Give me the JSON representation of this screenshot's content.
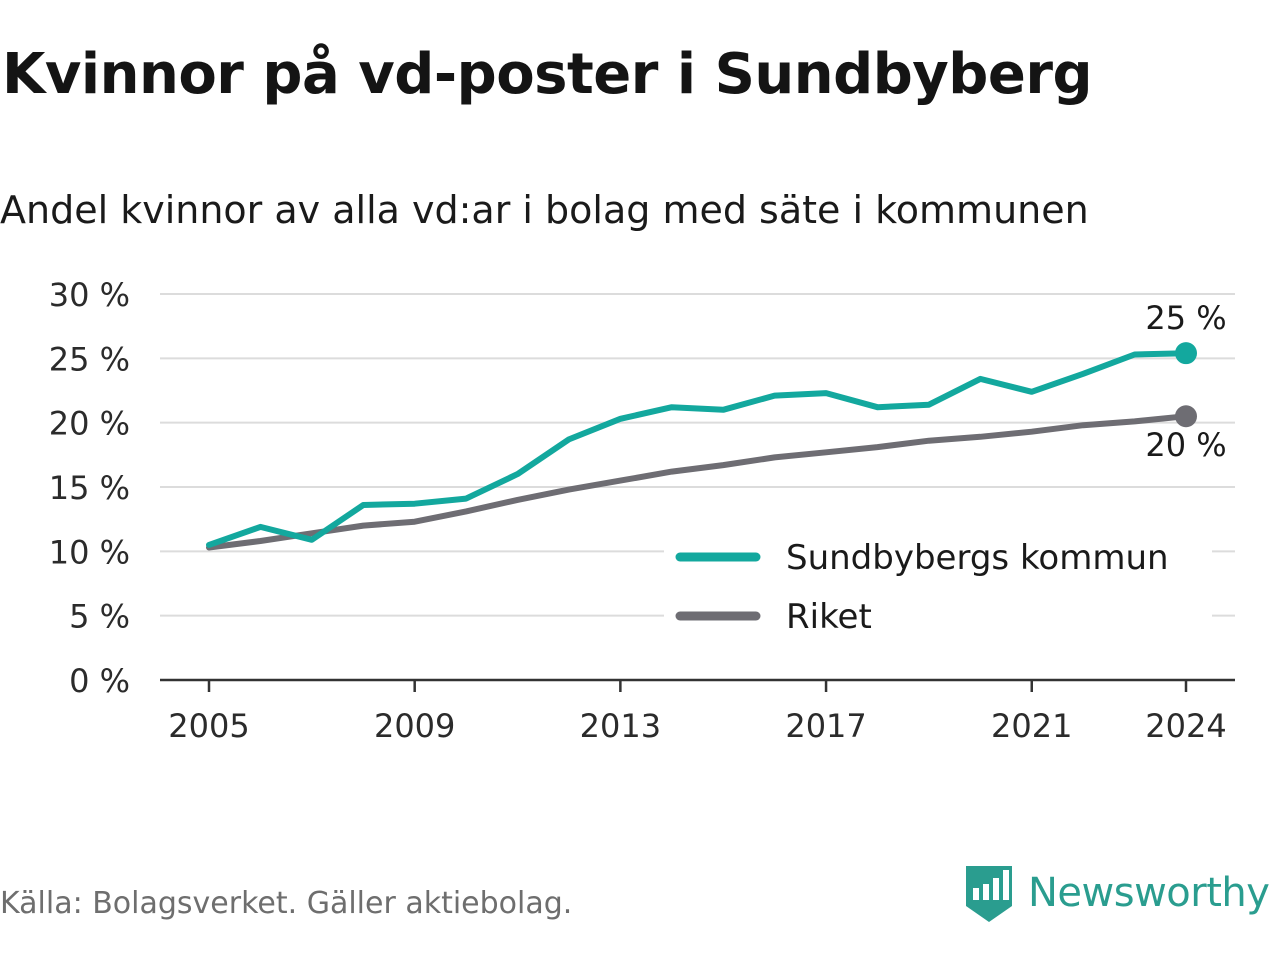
{
  "title": "Kvinnor på vd-poster i Sundbyberg",
  "subtitle": "Andel kvinnor av alla vd:ar i bolag med säte i kommunen",
  "source": "Källa: Bolagsverket. Gäller aktiebolag.",
  "brand": {
    "name": "Newsworthy",
    "icon": "newsworthy-logo-icon",
    "color": "#2a9d8f"
  },
  "chart_data": {
    "type": "line",
    "x": [
      2005,
      2006,
      2007,
      2008,
      2009,
      2010,
      2011,
      2012,
      2013,
      2014,
      2015,
      2016,
      2017,
      2018,
      2019,
      2020,
      2021,
      2022,
      2023,
      2024
    ],
    "series": [
      {
        "name": "Sundbybergs kommun",
        "color": "#13a89e",
        "values": [
          10.5,
          11.9,
          10.9,
          13.6,
          13.7,
          14.1,
          16.0,
          18.7,
          20.3,
          21.2,
          21.0,
          22.1,
          22.3,
          21.2,
          21.4,
          23.4,
          22.4,
          23.8,
          25.3,
          25.4
        ],
        "end_label": "25 %"
      },
      {
        "name": "Riket",
        "color": "#6e6d73",
        "values": [
          10.3,
          10.8,
          11.4,
          12.0,
          12.3,
          13.1,
          14.0,
          14.8,
          15.5,
          16.2,
          16.7,
          17.3,
          17.7,
          18.1,
          18.6,
          18.9,
          19.3,
          19.8,
          20.1,
          20.5
        ],
        "end_label": "20 %"
      }
    ],
    "xticks": [
      2005,
      2009,
      2013,
      2017,
      2021,
      2024
    ],
    "yticks": [
      0,
      5,
      10,
      15,
      20,
      25,
      30
    ],
    "ytick_labels": [
      "0 %",
      "5 %",
      "10 %",
      "15 %",
      "20 %",
      "25 %",
      "30 %"
    ],
    "ylim": [
      0,
      30
    ],
    "xlim": [
      2005,
      2024
    ],
    "grid": true,
    "legend_position": "bottom-right",
    "xlabel": "",
    "ylabel": ""
  }
}
